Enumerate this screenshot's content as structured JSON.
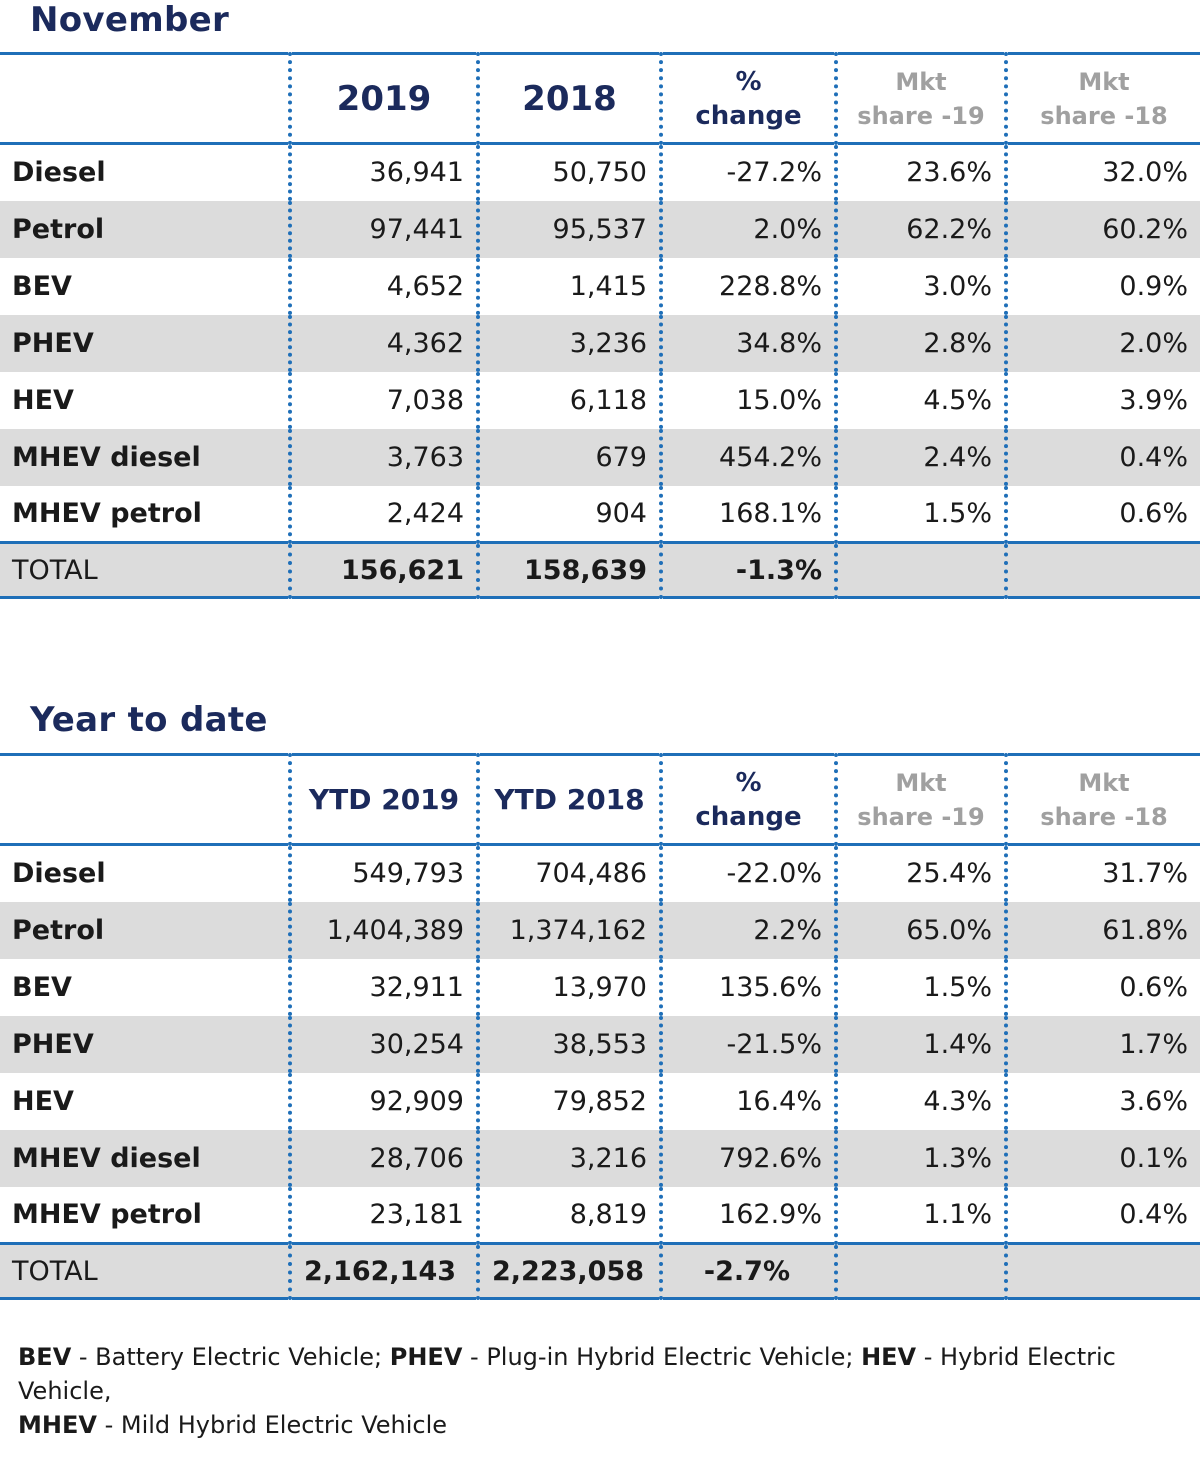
{
  "november": {
    "title": "November",
    "headers": {
      "y1": "2019",
      "y2": "2018",
      "pct_line1": "%",
      "pct_line2": "change",
      "share19_line1": "Mkt",
      "share19_line2": "share -19",
      "share18_line1": "Mkt",
      "share18_line2": "share -18"
    },
    "rows": [
      {
        "label": "Diesel",
        "v2019": "36,941",
        "v2018": "50,750",
        "change": "-27.2%",
        "share19": "23.6%",
        "share18": "32.0%"
      },
      {
        "label": "Petrol",
        "v2019": "97,441",
        "v2018": "95,537",
        "change": "2.0%",
        "share19": "62.2%",
        "share18": "60.2%"
      },
      {
        "label": "BEV",
        "v2019": "4,652",
        "v2018": "1,415",
        "change": "228.8%",
        "share19": "3.0%",
        "share18": "0.9%"
      },
      {
        "label": "PHEV",
        "v2019": "4,362",
        "v2018": "3,236",
        "change": "34.8%",
        "share19": "2.8%",
        "share18": "2.0%"
      },
      {
        "label": "HEV",
        "v2019": "7,038",
        "v2018": "6,118",
        "change": "15.0%",
        "share19": "4.5%",
        "share18": "3.9%"
      },
      {
        "label": "MHEV diesel",
        "v2019": "3,763",
        "v2018": "679",
        "change": "454.2%",
        "share19": "2.4%",
        "share18": "0.4%"
      },
      {
        "label": "MHEV petrol",
        "v2019": "2,424",
        "v2018": "904",
        "change": "168.1%",
        "share19": "1.5%",
        "share18": "0.6%"
      }
    ],
    "total": {
      "label": "TOTAL",
      "v2019": "156,621",
      "v2018": "158,639",
      "change": "-1.3%"
    }
  },
  "ytd": {
    "title": "Year to date",
    "headers": {
      "y1": "YTD 2019",
      "y2": "YTD 2018",
      "pct_line1": "%",
      "pct_line2": "change",
      "share19_line1": "Mkt",
      "share19_line2": "share -19",
      "share18_line1": "Mkt",
      "share18_line2": "share -18"
    },
    "rows": [
      {
        "label": "Diesel",
        "v2019": "549,793",
        "v2018": "704,486",
        "change": "-22.0%",
        "share19": "25.4%",
        "share18": "31.7%"
      },
      {
        "label": "Petrol",
        "v2019": "1,404,389",
        "v2018": "1,374,162",
        "change": "2.2%",
        "share19": "65.0%",
        "share18": "61.8%"
      },
      {
        "label": "BEV",
        "v2019": "32,911",
        "v2018": "13,970",
        "change": "135.6%",
        "share19": "1.5%",
        "share18": "0.6%"
      },
      {
        "label": "PHEV",
        "v2019": "30,254",
        "v2018": "38,553",
        "change": "-21.5%",
        "share19": "1.4%",
        "share18": "1.7%"
      },
      {
        "label": "HEV",
        "v2019": "92,909",
        "v2018": "79,852",
        "change": "16.4%",
        "share19": "4.3%",
        "share18": "3.6%"
      },
      {
        "label": "MHEV diesel",
        "v2019": "28,706",
        "v2018": "3,216",
        "change": "792.6%",
        "share19": "1.3%",
        "share18": "0.1%"
      },
      {
        "label": "MHEV petrol",
        "v2019": "23,181",
        "v2018": "8,819",
        "change": "162.9%",
        "share19": "1.1%",
        "share18": "0.4%"
      }
    ],
    "total": {
      "label": "TOTAL",
      "v2019": "2,162,143",
      "v2018": "2,223,058",
      "change": "-2.7%"
    }
  },
  "legend": {
    "items": [
      {
        "abbr": "BEV",
        "text": " - Battery Electric Vehicle; "
      },
      {
        "abbr": "PHEV",
        "text": " - Plug-in Hybrid Electric Vehicle; "
      },
      {
        "abbr": "HEV",
        "text": " - Hybrid Electric Vehicle, "
      },
      {
        "abbr": "MHEV",
        "text": " - Mild Hybrid Electric Vehicle"
      }
    ]
  },
  "colors": {
    "title": "#1b2a5c",
    "rule": "#1f6fb8",
    "stripe": "#dcdcdc",
    "muted_header": "#a0a0a0"
  }
}
